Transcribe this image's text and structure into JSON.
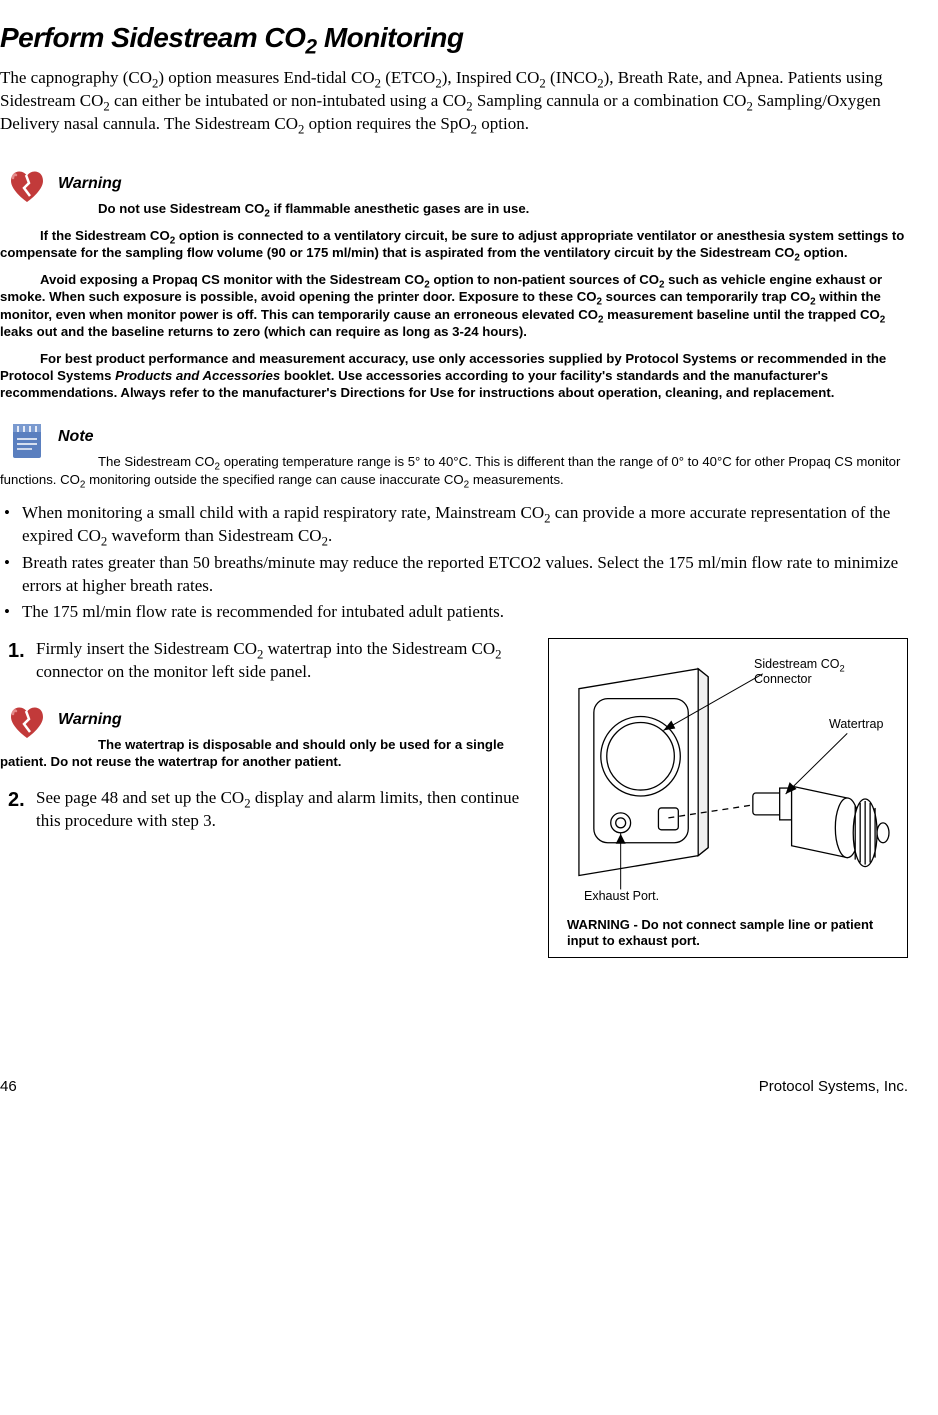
{
  "title_pre": "Perform Sidestream CO",
  "title_sub": "2",
  "title_post": " Monitoring",
  "intro_html": "The capnography (CO<span class=\"sub\">2</span>) option measures End-tidal CO<span class=\"sub\">2</span> (ETCO<span class=\"sub\">2</span>), Inspired CO<span class=\"sub\">2</span> (INCO<span class=\"sub\">2</span>), Breath Rate, and Apnea. Patients using Sidestream CO<span class=\"sub\">2</span> can either be intubated or non-intubated using a CO<span class=\"sub\">2</span> Sampling cannula or a combination CO<span class=\"sub\">2</span> Sampling/Oxygen Delivery nasal cannula. The Sidestream CO<span class=\"sub\">2</span> option requires the SpO<span class=\"sub\">2</span> option.",
  "warning1": {
    "label": "Warning",
    "p1": "Do not use Sidestream CO<span class=\"sub\">2</span> if flammable anesthetic gases are in use.",
    "p2": "If the Sidestream CO<span class=\"sub\">2</span> option is connected to a ventilatory circuit, be sure to adjust appropriate ventilator or anesthesia system settings to compensate for the sampling flow volume (90 or 175 ml/min) that is aspirated from the ventilatory circuit by the Sidestream CO<span class=\"sub\">2</span> option.",
    "p3": "Avoid exposing a Propaq CS monitor with the Sidestream CO<span class=\"sub\">2</span> option to non-patient sources of CO<span class=\"sub\">2</span> such as vehicle engine exhaust or smoke. When such exposure is possible, avoid opening the printer door. Exposure to these CO<span class=\"sub\">2</span> sources can temporarily trap CO<span class=\"sub\">2</span> within the monitor, even when monitor power is off. This can temporarily cause an erroneous elevated CO<span class=\"sub\">2</span> measurement baseline until the trapped CO<span class=\"sub\">2</span> leaks out and the baseline returns to zero (which can require as long as 3-24 hours).",
    "p4": "For best product performance and measurement accuracy, use only accessories supplied by Protocol Systems or recommended in the Protocol Systems <em>Products and Accessories</em> booklet. Use accessories according to your facility's standards and the manufacturer's recommendations. Always refer to the manufacturer's Directions for Use for instructions about operation, cleaning, and replacement."
  },
  "note": {
    "label": "Note",
    "p1": "The Sidestream CO<span class=\"sub\">2</span> operating temperature range is 5° to 40°C. This is different than the range of 0° to 40°C for other Propaq CS monitor functions. CO<span class=\"sub\">2</span> monitoring outside the specified range can cause inaccurate CO<span class=\"sub\">2</span> measurements."
  },
  "bullets": [
    "When monitoring a small child with a rapid respiratory rate, Mainstream CO<span class=\"sub\">2</span> can provide a more accurate representation of the expired CO<span class=\"sub\">2</span> waveform than Sidestream CO<span class=\"sub\">2</span>.",
    "Breath rates greater than 50 breaths/minute may reduce the reported ETCO2 values. Select the 175 ml/min flow rate to minimize errors at higher breath rates.",
    "The 175 ml/min flow rate is recommended for intubated adult patients."
  ],
  "steps": {
    "s1": {
      "num": "1.",
      "text": "Firmly insert the Sidestream CO<span class=\"sub\">2</span> watertrap into the Sidestream CO<span class=\"sub\">2</span> connector on the monitor left side panel."
    },
    "s2": {
      "num": "2.",
      "text": "See page 48 and set up the CO<span class=\"sub\">2</span> display and alarm limits, then continue this procedure with step 3."
    }
  },
  "warning2": {
    "label": "Warning",
    "text": "The watertrap is disposable and should only be used for a single patient. Do not reuse the watertrap for another patient."
  },
  "figure": {
    "label_connector": "Sidestream CO<span class=\"sub\">2</span><br>Connector",
    "label_watertrap": "Watertrap",
    "label_exhaust": "Exhaust Port.",
    "warning": "WARNING - Do not connect sample line or patient input to exhaust port."
  },
  "footer": {
    "page": "46",
    "company": "Protocol Systems, Inc."
  },
  "colors": {
    "heart_red": "#c23a3a",
    "heart_highlight": "#e48a8a",
    "note_blue": "#5a7fbf",
    "note_lines": "#ffffff",
    "text": "#000000",
    "bg": "#ffffff"
  }
}
